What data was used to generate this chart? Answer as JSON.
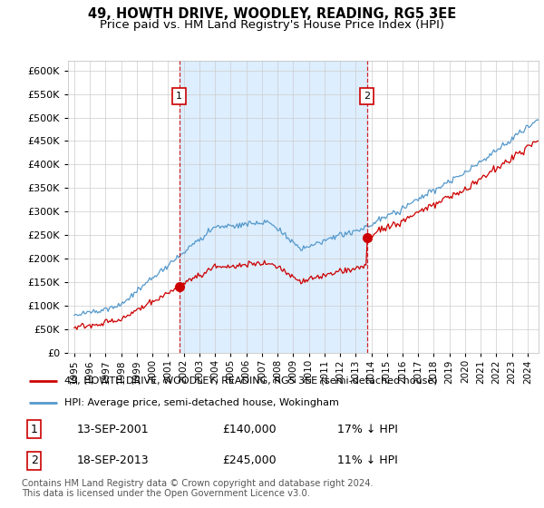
{
  "title": "49, HOWTH DRIVE, WOODLEY, READING, RG5 3EE",
  "subtitle": "Price paid vs. HM Land Registry's House Price Index (HPI)",
  "ylim": [
    0,
    620000
  ],
  "yticks": [
    0,
    50000,
    100000,
    150000,
    200000,
    250000,
    300000,
    350000,
    400000,
    450000,
    500000,
    550000,
    600000
  ],
  "xlim_start": 1994.6,
  "xlim_end": 2024.7,
  "marker1_x": 2001.71,
  "marker1_y": 140000,
  "marker1_label": "1",
  "marker2_x": 2013.71,
  "marker2_y": 245000,
  "marker2_label": "2",
  "line1_color": "#cc0000",
  "line2_color": "#5599cc",
  "shade_color": "#ddeeff",
  "marker_box_color": "#cc0000",
  "grid_color": "#cccccc",
  "bg_color": "#ffffff",
  "legend_line1": "49, HOWTH DRIVE, WOODLEY, READING, RG5 3EE (semi-detached house)",
  "legend_line2": "HPI: Average price, semi-detached house, Wokingham",
  "table_row1": [
    "1",
    "13-SEP-2001",
    "£140,000",
    "17% ↓ HPI"
  ],
  "table_row2": [
    "2",
    "18-SEP-2013",
    "£245,000",
    "11% ↓ HPI"
  ],
  "footnote": "Contains HM Land Registry data © Crown copyright and database right 2024.\nThis data is licensed under the Open Government Licence v3.0.",
  "title_fontsize": 10.5,
  "subtitle_fontsize": 9.5
}
